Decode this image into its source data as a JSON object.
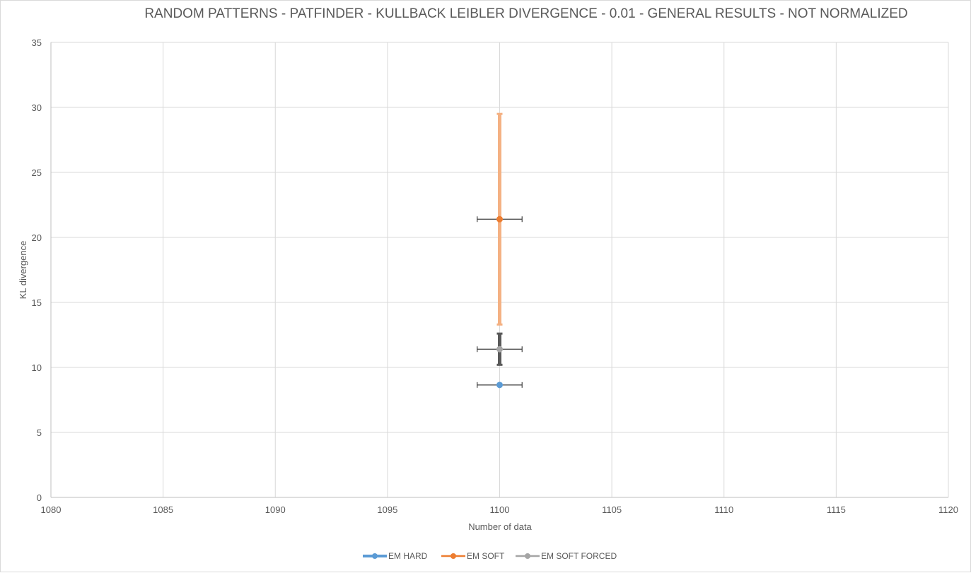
{
  "chart_data": {
    "type": "scatter",
    "title": "RANDOM PATTERNS - PATFINDER - KULLBACK LEIBLER DIVERGENCE - 0.01 - GENERAL RESULTS - NOT NORMALIZED",
    "xlabel": "Number of data",
    "ylabel": "KL divergence",
    "xlim": [
      1080,
      1120
    ],
    "ylim": [
      0,
      35
    ],
    "x_ticks": [
      1080,
      1085,
      1090,
      1095,
      1100,
      1105,
      1110,
      1115,
      1120
    ],
    "y_ticks": [
      0,
      5,
      10,
      15,
      20,
      25,
      30,
      35
    ],
    "grid": true,
    "legend_position": "bottom",
    "series": [
      {
        "name": "EM HARD",
        "color": "#5b9bd5",
        "points": [
          {
            "x": 1100,
            "y": 8.65
          }
        ],
        "x_error": 1,
        "y_error": null,
        "y_error_color": null
      },
      {
        "name": "EM SOFT",
        "color": "#ed7d31",
        "points": [
          {
            "x": 1100,
            "y": 21.4
          }
        ],
        "x_error": 1,
        "y_error": [
          13.3,
          29.5
        ],
        "y_error_color": "#f4b183"
      },
      {
        "name": "EM SOFT FORCED",
        "color": "#a5a5a5",
        "points": [
          {
            "x": 1100,
            "y": 11.4
          }
        ],
        "x_error": 1,
        "y_error": [
          10.2,
          12.6
        ],
        "y_error_color": "#595959"
      }
    ]
  }
}
